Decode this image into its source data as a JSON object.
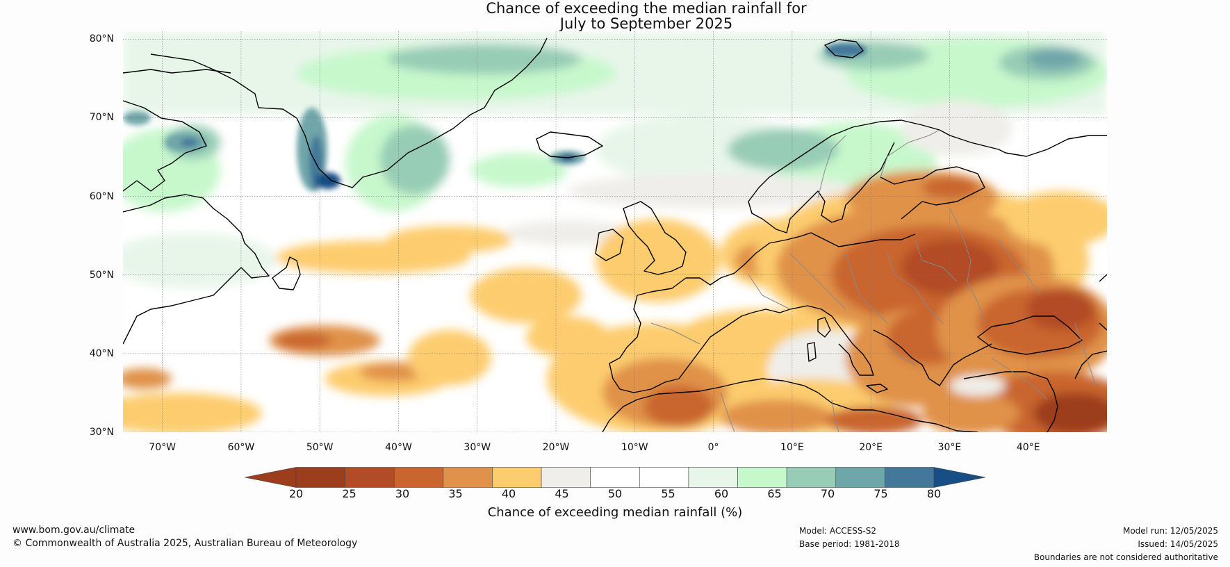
{
  "title": {
    "line1": "Chance of exceeding the median rainfall for",
    "line2": "July to September 2025"
  },
  "map": {
    "projection": "equirectangular",
    "extent": {
      "lon": [
        -75,
        50
      ],
      "lat": [
        30,
        81
      ]
    },
    "lat_labels": [
      "80°N",
      "70°N",
      "60°N",
      "50°N",
      "40°N",
      "30°N"
    ],
    "lon_labels": [
      "70°W",
      "60°W",
      "50°W",
      "40°W",
      "30°W",
      "20°W",
      "10°W",
      "0°",
      "10°E",
      "20°E",
      "30°E",
      "40°E"
    ],
    "coastline_color": "#000000",
    "border_color": "#808080",
    "gridlines": true
  },
  "colorbar": {
    "ticks": [
      "20",
      "25",
      "30",
      "35",
      "40",
      "45",
      "50",
      "55",
      "60",
      "65",
      "70",
      "75",
      "80"
    ],
    "colors": [
      "#9c3d1e",
      "#b24c26",
      "#c9652f",
      "#e0924a",
      "#fdcc6e",
      "#efeeea",
      "#ffffff",
      "#ffffff",
      "#e8f6ea",
      "#c7f8cc",
      "#97ccb6",
      "#6fa6a9",
      "#43789a"
    ],
    "under_color": "#9c3d1e",
    "over_color": "#174e85",
    "label": "Chance of exceeding median rainfall (%)"
  },
  "footer": {
    "website": "www.bom.gov.au/climate",
    "copyright": "© Commonwealth of Australia 2025, Australian Bureau of Meteorology",
    "model": "Model: ACCESS-S2",
    "base_period": "Base period: 1981-2018",
    "model_run": "Model run: 12/05/2025",
    "issued": "Issued: 14/05/2025",
    "disclaimer": "Boundaries are not considered authoritative"
  }
}
